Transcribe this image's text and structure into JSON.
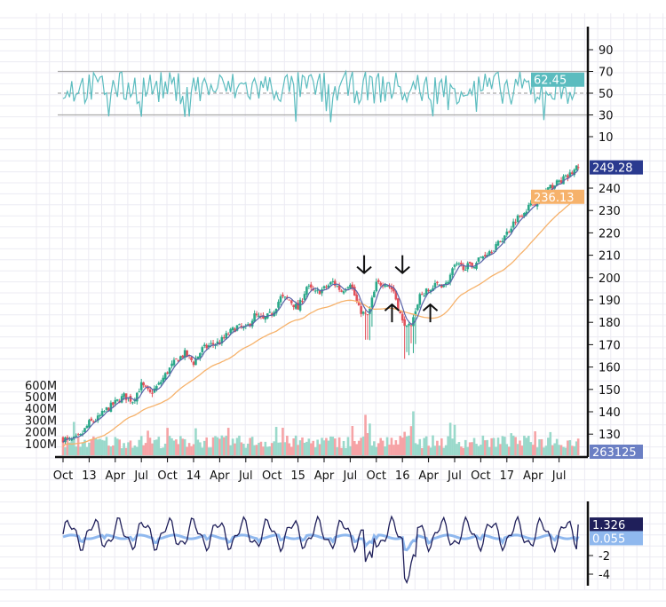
{
  "chart_data": {
    "type": "candlestick",
    "title": "",
    "x_tick_labels": [
      "Oct",
      "13",
      "Apr",
      "Jul",
      "Oct",
      "14",
      "Apr",
      "Jul",
      "Oct",
      "15",
      "Apr",
      "Jul",
      "Oct",
      "16",
      "Apr",
      "Jul",
      "Oct",
      "17",
      "Apr",
      "Jul"
    ],
    "x_start_month": "2012-10",
    "monthly_close": [
      128,
      127,
      129,
      135,
      137,
      141,
      144,
      147,
      145,
      152,
      148,
      152,
      158,
      163,
      166,
      162,
      168,
      170,
      171,
      175,
      178,
      177,
      183,
      181,
      184,
      191,
      190,
      186,
      196,
      193,
      195,
      198,
      194,
      198,
      186,
      182,
      197,
      198,
      194,
      180,
      180,
      192,
      194,
      197,
      197,
      205,
      205,
      205,
      209,
      212,
      215,
      220,
      226,
      230,
      233,
      237,
      240,
      243,
      245,
      249
    ],
    "rsi_panel": {
      "ticks": [
        90,
        70,
        50,
        30,
        10
      ],
      "ylim": [
        0,
        100
      ],
      "bands": [
        70,
        50,
        30
      ],
      "last_value": "62.45",
      "color": "#5bbcbf"
    },
    "price_panel": {
      "ticks": [
        240,
        230,
        220,
        210,
        200,
        190,
        180,
        170,
        160,
        150,
        140,
        130
      ],
      "ylim": [
        124,
        254
      ],
      "last_close": "249.28",
      "last_close_color": "#2a3a8f",
      "slow_ma_last": "236.13",
      "slow_ma_color": "#f6b26b",
      "fast_ma_color": "#5a63a8",
      "up_color": "#2aa889",
      "down_color": "#e2515b"
    },
    "volume_panel": {
      "ticks": [
        "600M",
        "500M",
        "400M",
        "300M",
        "200M",
        "100M"
      ],
      "tick_values": [
        600,
        500,
        400,
        300,
        200,
        100
      ],
      "last_value": "263125",
      "label_color": "#6b7fc4"
    },
    "oscillator_panel": {
      "ticks": [
        "-2",
        "-4"
      ],
      "tick_values": [
        -2,
        -4
      ],
      "ylim": [
        -5,
        3
      ],
      "line1_last": "1.326",
      "line1_color": "#1f1f5a",
      "line2_last": "0.055",
      "line2_color": "#8fb8ee"
    },
    "annotations": [
      {
        "type": "arrow-down",
        "month": 34.6,
        "price": 206
      },
      {
        "type": "arrow-down",
        "month": 39,
        "price": 206
      },
      {
        "type": "arrow-up",
        "month": 37.8,
        "price": 184
      },
      {
        "type": "arrow-up",
        "month": 42.2,
        "price": 184
      }
    ]
  }
}
